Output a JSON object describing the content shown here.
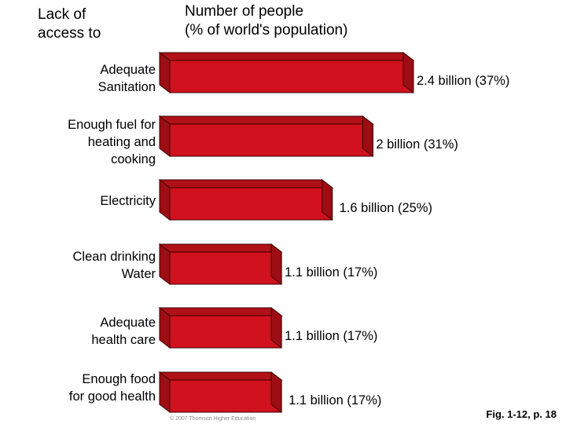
{
  "header": {
    "left_line1": "Lack of",
    "left_line2": "access to",
    "right_line1": "Number of people",
    "right_line2": "(% of world's population)"
  },
  "figure_ref": "Fig. 1-12, p. 18",
  "copyright": "© 2007 Thomson Higher Education",
  "colors": {
    "bar_front": "#d1111e",
    "bar_top": "#b01018",
    "bar_side": "#9c0d14",
    "outline": "#3a0000"
  },
  "chart_data": {
    "type": "bar",
    "orientation": "horizontal",
    "title": "",
    "xlabel": "Number of people (% of world's population)",
    "ylabel": "Lack of access to",
    "grid": false,
    "legend": "none",
    "xlim": [
      0,
      2.4
    ],
    "categories": [
      [
        "Adequate",
        "Sanitation"
      ],
      [
        "Enough fuel for",
        "heating and",
        "cooking"
      ],
      [
        "Electricity"
      ],
      [
        "Clean drinking",
        "Water"
      ],
      [
        "Adequate",
        "health care"
      ],
      [
        "Enough food",
        "for good health"
      ]
    ],
    "values": [
      2.4,
      2.0,
      1.6,
      1.1,
      1.1,
      1.1
    ],
    "percent": [
      37,
      31,
      25,
      17,
      17,
      17
    ],
    "labels": [
      "2.4 billion (37%)",
      "2 billion (31%)",
      "1.6 billion (25%)",
      "1.1 billion (17%)",
      "1.1 billion (17%)",
      "1.1 billion (17%)"
    ]
  }
}
